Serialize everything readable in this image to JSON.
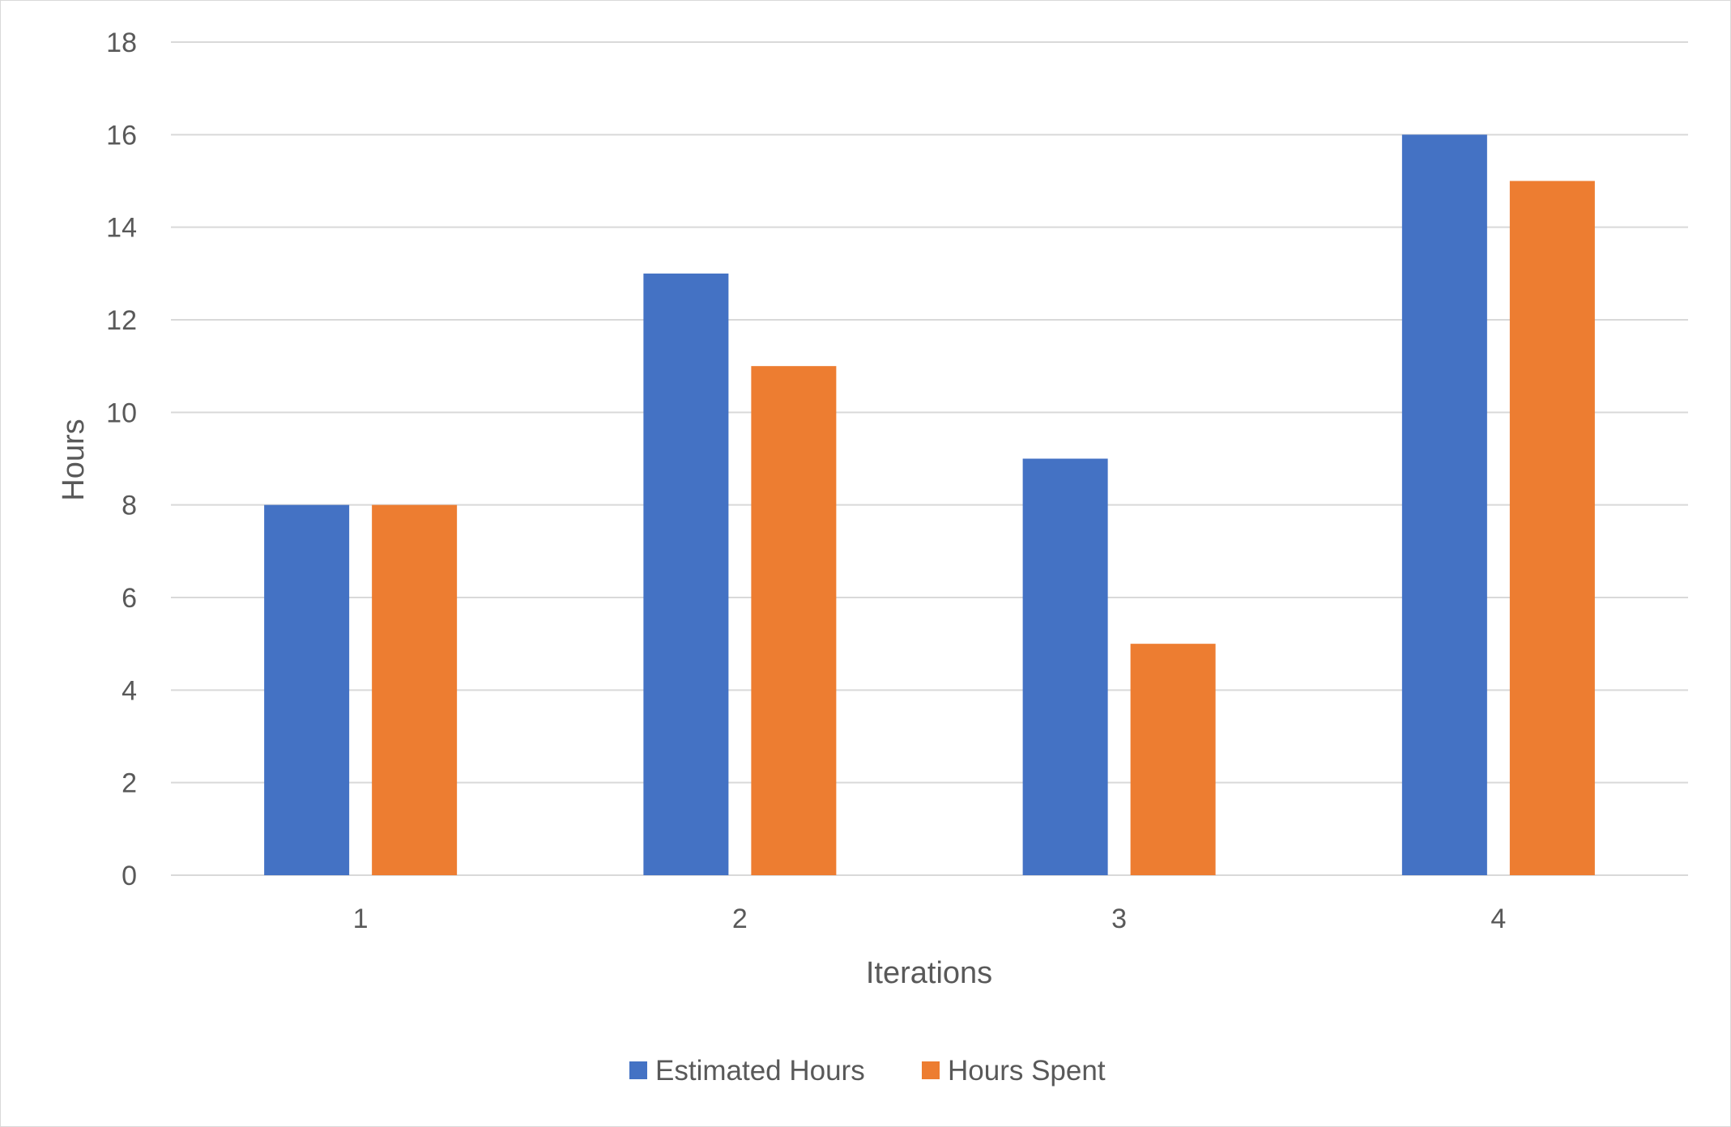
{
  "chart_data": {
    "type": "bar",
    "categories": [
      "1",
      "2",
      "3",
      "4"
    ],
    "series": [
      {
        "name": "Estimated Hours",
        "values": [
          8,
          13,
          9,
          16
        ],
        "color": "#4472C4"
      },
      {
        "name": "Hours Spent",
        "values": [
          8,
          11,
          5,
          15
        ],
        "color": "#ED7D31"
      }
    ],
    "title": "",
    "xlabel": "Iterations",
    "ylabel": "Hours",
    "ylim": [
      0,
      18
    ],
    "yticks": [
      "0",
      "2",
      "4",
      "6",
      "8",
      "10",
      "12",
      "14",
      "16",
      "18"
    ],
    "grid": true,
    "legend_position": "bottom",
    "gridline_color": "#d9d9d9"
  }
}
